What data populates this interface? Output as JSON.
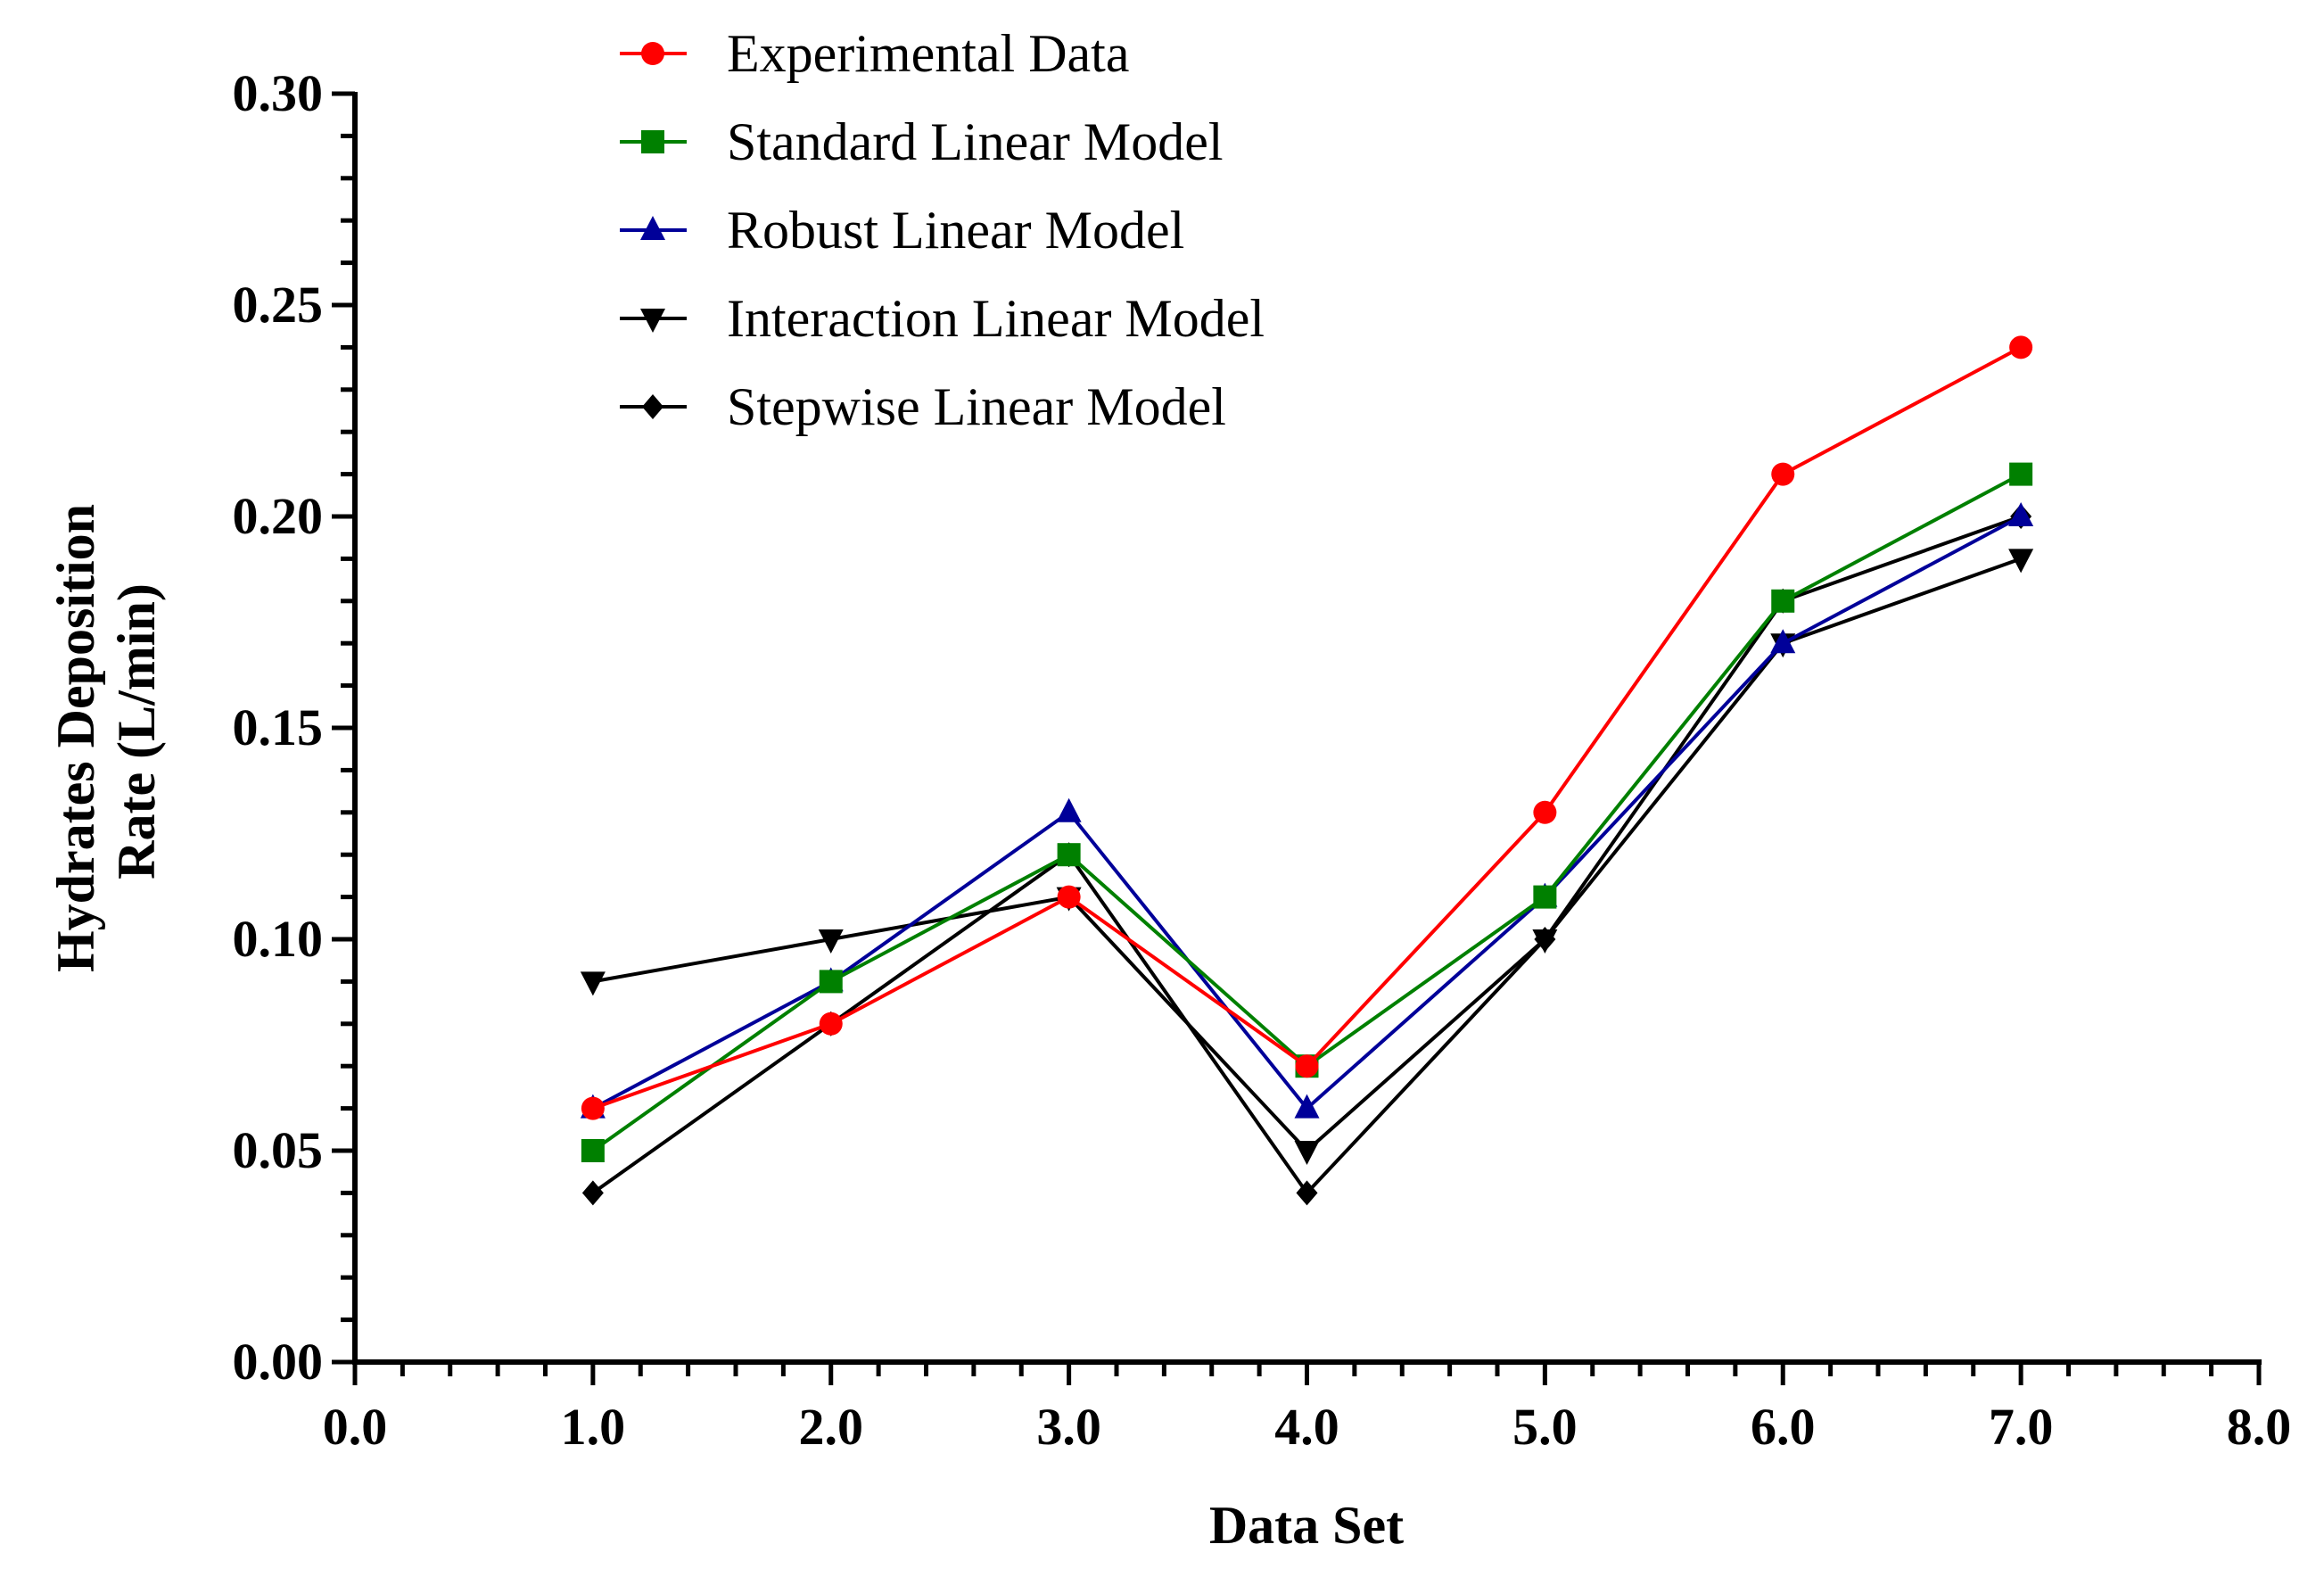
{
  "chart_data": {
    "type": "line",
    "xlabel": "Data Set",
    "ylabel_line1": "Hydrates Deposition",
    "ylabel_line2": "Rate (L/min)",
    "xlim": [
      0,
      8
    ],
    "ylim": [
      0,
      0.3
    ],
    "x_ticks": [
      "0.0",
      "1.0",
      "2.0",
      "3.0",
      "4.0",
      "5.0",
      "6.0",
      "7.0",
      "8.0"
    ],
    "y_ticks": [
      "0.00",
      "0.05",
      "0.10",
      "0.15",
      "0.20",
      "0.25",
      "0.30"
    ],
    "legend_position": "top-center",
    "grid": false,
    "x": [
      1,
      2,
      3,
      4,
      5,
      6,
      7
    ],
    "series": [
      {
        "name": "Experimental Data",
        "color": "#ff0000",
        "marker": "circle",
        "values": [
          0.06,
          0.08,
          0.11,
          0.07,
          0.13,
          0.21,
          0.24
        ]
      },
      {
        "name": "Standard Linear Model",
        "color": "#008000",
        "marker": "square",
        "values": [
          0.05,
          0.09,
          0.12,
          0.07,
          0.11,
          0.18,
          0.21
        ]
      },
      {
        "name": "Robust Linear Model",
        "color": "#000099",
        "marker": "triangle-up",
        "values": [
          0.06,
          0.09,
          0.13,
          0.06,
          0.11,
          0.17,
          0.2
        ]
      },
      {
        "name": "Interaction Linear Model",
        "color": "#000000",
        "marker": "triangle-down",
        "values": [
          0.09,
          0.1,
          0.11,
          0.05,
          0.1,
          0.17,
          0.19
        ]
      },
      {
        "name": "Stepwise Linear Model",
        "color": "#000000",
        "marker": "diamond",
        "values": [
          0.04,
          0.08,
          0.12,
          0.04,
          0.1,
          0.18,
          0.2
        ]
      }
    ]
  }
}
